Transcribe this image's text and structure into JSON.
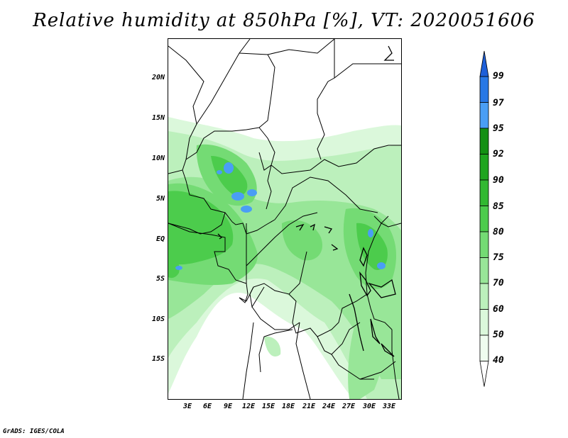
{
  "title": "Relative humidity at 850hPa [%], VT: 2020051606",
  "credit": "GrADS: IGES/COLA",
  "lat_labels": [
    "20N",
    "15N",
    "10N",
    "5N",
    "EQ",
    "5S",
    "10S",
    "15S"
  ],
  "lon_labels": [
    "3E",
    "6E",
    "9E",
    "12E",
    "15E",
    "18E",
    "21E",
    "24E",
    "27E",
    "30E",
    "33E"
  ],
  "colorbar": {
    "levels": [
      "99",
      "97",
      "95",
      "92",
      "90",
      "85",
      "80",
      "75",
      "70",
      "60",
      "50",
      "40"
    ],
    "colors": {
      "above_99": "#1e5fd8",
      "97_99": "#2878e6",
      "95_97": "#4a9ef5",
      "92_95": "#139013",
      "90_92": "#1fa51f",
      "85_90": "#31b931",
      "80_85": "#4ccc4c",
      "75_80": "#74db74",
      "70_75": "#98e698",
      "60_70": "#bcf0bc",
      "50_60": "#dbf8db",
      "40_50": "#effcef",
      "below_40": "#ffffff"
    }
  }
}
